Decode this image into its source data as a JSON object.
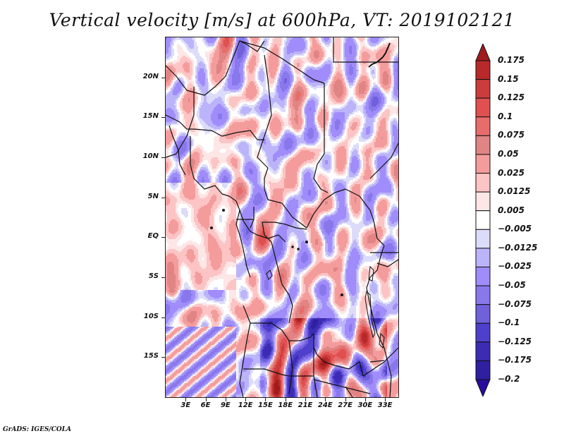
{
  "chart_data": {
    "type": "heatmap",
    "title": "Vertical velocity [m/s] at 600hPa, VT: 2019102121",
    "variable": "Vertical velocity",
    "units": "m/s",
    "level": "600hPa",
    "valid_time": "2019102121",
    "xlabel": "",
    "ylabel": "",
    "xlim": [
      0,
      35
    ],
    "ylim": [
      -20,
      25
    ],
    "x_ticks": [
      {
        "value": 3,
        "label": "3E"
      },
      {
        "value": 6,
        "label": "6E"
      },
      {
        "value": 9,
        "label": "9E"
      },
      {
        "value": 12,
        "label": "12E"
      },
      {
        "value": 15,
        "label": "15E"
      },
      {
        "value": 18,
        "label": "18E"
      },
      {
        "value": 21,
        "label": "21E"
      },
      {
        "value": 24,
        "label": "24E"
      },
      {
        "value": 27,
        "label": "27E"
      },
      {
        "value": 30,
        "label": "30E"
      },
      {
        "value": 33,
        "label": "33E"
      }
    ],
    "y_ticks": [
      {
        "value": 20,
        "label": "20N"
      },
      {
        "value": 15,
        "label": "15N"
      },
      {
        "value": 10,
        "label": "10N"
      },
      {
        "value": 5,
        "label": "5N"
      },
      {
        "value": 0,
        "label": "EQ"
      },
      {
        "value": -5,
        "label": "5S"
      },
      {
        "value": -10,
        "label": "10S"
      },
      {
        "value": -15,
        "label": "15S"
      }
    ],
    "colorbar": {
      "orientation": "vertical",
      "placement": "right",
      "levels": [
        0.175,
        0.15,
        0.125,
        0.1,
        0.075,
        0.05,
        0.025,
        0.0125,
        0.005,
        -0.005,
        -0.0125,
        -0.025,
        -0.05,
        -0.075,
        -0.1,
        -0.125,
        -0.175,
        -0.2
      ],
      "level_labels": [
        "0.175",
        "0.15",
        "0.125",
        "0.1",
        "0.075",
        "0.05",
        "0.025",
        "0.0125",
        "0.005",
        "−0.005",
        "−0.0125",
        "−0.025",
        "−0.05",
        "−0.075",
        "−0.1",
        "−0.125",
        "−0.175",
        "−0.2"
      ],
      "colors": [
        "#a01c1c",
        "#b8292a",
        "#cc3c3c",
        "#e05050",
        "#e86c6c",
        "#e08484",
        "#f49c9c",
        "#fcc4c4",
        "#fde6e6",
        "#ffffff",
        "#dcdcfa",
        "#bcb4fa",
        "#a08cfa",
        "#8878ec",
        "#7060dc",
        "#4e40cc",
        "#3c2cb4",
        "#2e20a0",
        "#2a0c9c"
      ],
      "extend": "both"
    },
    "grid": false,
    "description": "Gridded vertical velocity field over Central Africa with country borders; strong mixed positive/negative values over southern Angola/Zambia (~10S-20S, 14E-30E)"
  },
  "footer": "GrADS: IGES/COLA"
}
